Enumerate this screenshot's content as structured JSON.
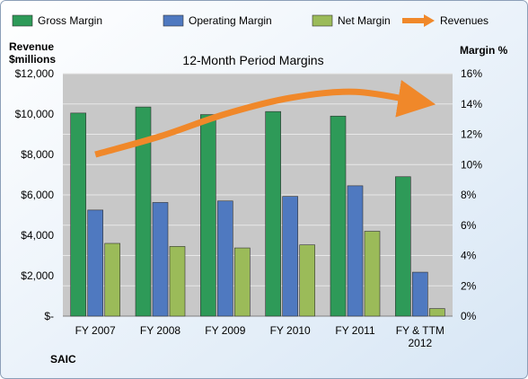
{
  "chart_data": {
    "type": "bar",
    "title": "12-Month Period Margins",
    "company": "SAIC",
    "ylabel_left": [
      "Revenue",
      "$millions"
    ],
    "ylabel_right": "Margin %",
    "categories": [
      [
        "FY 2007"
      ],
      [
        "FY 2008"
      ],
      [
        "FY 2009"
      ],
      [
        "FY 2010"
      ],
      [
        "FY 2011"
      ],
      [
        "FY & TTM",
        "2012"
      ]
    ],
    "left_axis": {
      "min": 0,
      "max": 12000,
      "step": 2000,
      "ticks": [
        "$-",
        "$2,000",
        "$4,000",
        "$6,000",
        "$8,000",
        "$10,000",
        "$12,000"
      ]
    },
    "right_axis": {
      "min": 0,
      "max": 16,
      "step": 2,
      "ticks": [
        "0%",
        "2%",
        "4%",
        "6%",
        "8%",
        "10%",
        "12%",
        "14%",
        "16%"
      ]
    },
    "series": [
      {
        "name": "Gross Margin",
        "axis": "right",
        "color": "#2e9a58",
        "values": [
          13.4,
          13.8,
          13.3,
          13.5,
          13.2,
          9.2
        ]
      },
      {
        "name": "Operating Margin",
        "axis": "right",
        "color": "#4f79c0",
        "values": [
          7.0,
          7.5,
          7.6,
          7.9,
          8.6,
          2.9
        ]
      },
      {
        "name": "Net Margin",
        "axis": "right",
        "color": "#9bbb59",
        "values": [
          4.8,
          4.6,
          4.5,
          4.7,
          5.6,
          0.5
        ]
      },
      {
        "name": "Revenues",
        "axis": "left",
        "type": "line",
        "color": "#f0882a",
        "values": [
          8000,
          8900,
          10000,
          10800,
          11100,
          10600
        ]
      }
    ],
    "legend_position": "top",
    "grid": true
  }
}
